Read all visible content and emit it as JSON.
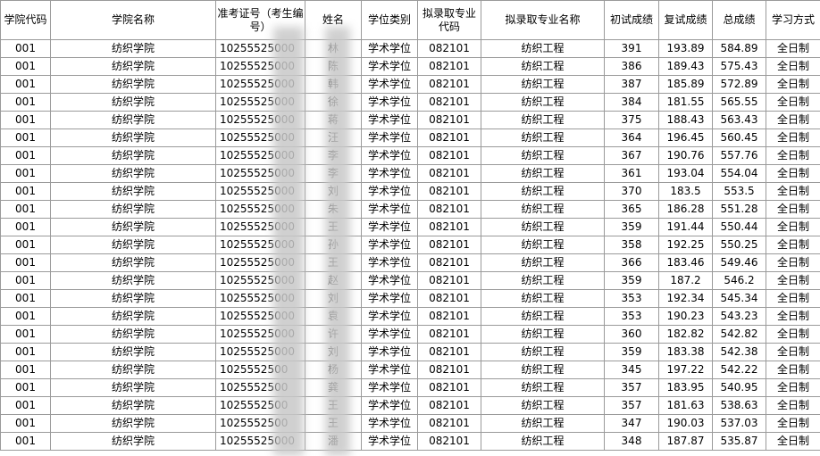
{
  "table": {
    "columns": [
      "学院代码",
      "学院名称",
      "准考证号（考生编号）",
      "姓名",
      "学位类别",
      "拟录取专业代码",
      "拟录取专业名称",
      "初试成绩",
      "复试成绩",
      "总成绩",
      "学习方式"
    ],
    "rows": [
      [
        "001",
        "纺织学院",
        "10255525000",
        "林",
        "学术学位",
        "082101",
        "纺织工程",
        "391",
        "193.89",
        "584.89",
        "全日制"
      ],
      [
        "001",
        "纺织学院",
        "10255525000",
        "陈",
        "学术学位",
        "082101",
        "纺织工程",
        "386",
        "189.43",
        "575.43",
        "全日制"
      ],
      [
        "001",
        "纺织学院",
        "10255525000",
        "韩",
        "学术学位",
        "082101",
        "纺织工程",
        "387",
        "185.89",
        "572.89",
        "全日制"
      ],
      [
        "001",
        "纺织学院",
        "10255525000",
        "徐",
        "学术学位",
        "082101",
        "纺织工程",
        "384",
        "181.55",
        "565.55",
        "全日制"
      ],
      [
        "001",
        "纺织学院",
        "10255525000",
        "蒋",
        "学术学位",
        "082101",
        "纺织工程",
        "375",
        "188.43",
        "563.43",
        "全日制"
      ],
      [
        "001",
        "纺织学院",
        "10255525000",
        "汪",
        "学术学位",
        "082101",
        "纺织工程",
        "364",
        "196.45",
        "560.45",
        "全日制"
      ],
      [
        "001",
        "纺织学院",
        "10255525000",
        "李",
        "学术学位",
        "082101",
        "纺织工程",
        "367",
        "190.76",
        "557.76",
        "全日制"
      ],
      [
        "001",
        "纺织学院",
        "10255525000",
        "李",
        "学术学位",
        "082101",
        "纺织工程",
        "361",
        "193.04",
        "554.04",
        "全日制"
      ],
      [
        "001",
        "纺织学院",
        "10255525000",
        "刘",
        "学术学位",
        "082101",
        "纺织工程",
        "370",
        "183.5",
        "553.5",
        "全日制"
      ],
      [
        "001",
        "纺织学院",
        "10255525000",
        "朱",
        "学术学位",
        "082101",
        "纺织工程",
        "365",
        "186.28",
        "551.28",
        "全日制"
      ],
      [
        "001",
        "纺织学院",
        "10255525000",
        "王",
        "学术学位",
        "082101",
        "纺织工程",
        "359",
        "191.44",
        "550.44",
        "全日制"
      ],
      [
        "001",
        "纺织学院",
        "10255525000",
        "孙",
        "学术学位",
        "082101",
        "纺织工程",
        "358",
        "192.25",
        "550.25",
        "全日制"
      ],
      [
        "001",
        "纺织学院",
        "10255525000",
        "王",
        "学术学位",
        "082101",
        "纺织工程",
        "366",
        "183.46",
        "549.46",
        "全日制"
      ],
      [
        "001",
        "纺织学院",
        "10255525000",
        "赵",
        "学术学位",
        "082101",
        "纺织工程",
        "359",
        "187.2",
        "546.2",
        "全日制"
      ],
      [
        "001",
        "纺织学院",
        "10255525000",
        "刘",
        "学术学位",
        "082101",
        "纺织工程",
        "353",
        "192.34",
        "545.34",
        "全日制"
      ],
      [
        "001",
        "纺织学院",
        "10255525000",
        "袁",
        "学术学位",
        "082101",
        "纺织工程",
        "353",
        "190.23",
        "543.23",
        "全日制"
      ],
      [
        "001",
        "纺织学院",
        "10255525000",
        "许",
        "学术学位",
        "082101",
        "纺织工程",
        "360",
        "182.82",
        "542.82",
        "全日制"
      ],
      [
        "001",
        "纺织学院",
        "10255525000",
        "刘",
        "学术学位",
        "082101",
        "纺织工程",
        "359",
        "183.38",
        "542.38",
        "全日制"
      ],
      [
        "001",
        "纺织学院",
        "1025552500",
        "杨",
        "学术学位",
        "082101",
        "纺织工程",
        "345",
        "197.22",
        "542.22",
        "全日制"
      ],
      [
        "001",
        "纺织学院",
        "1025552500",
        "龚",
        "学术学位",
        "082101",
        "纺织工程",
        "357",
        "183.95",
        "540.95",
        "全日制"
      ],
      [
        "001",
        "纺织学院",
        "1025552500",
        "王",
        "学术学位",
        "082101",
        "纺织工程",
        "357",
        "181.63",
        "538.63",
        "全日制"
      ],
      [
        "001",
        "纺织学院",
        "1025552500",
        "王",
        "学术学位",
        "082101",
        "纺织工程",
        "347",
        "190.03",
        "537.03",
        "全日制"
      ],
      [
        "001",
        "纺织学院",
        "10255525000",
        "潘",
        "学术学位",
        "082101",
        "纺织工程",
        "348",
        "187.87",
        "535.87",
        "全日制"
      ]
    ]
  }
}
